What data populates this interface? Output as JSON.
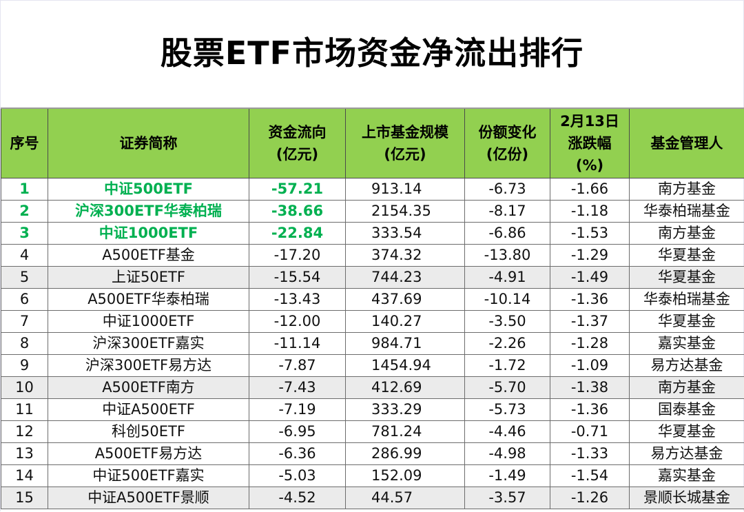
{
  "title": "股票ETF市场资金净流出排行",
  "colors": {
    "header_bg": "#92d050",
    "highlight_text": "#00b050",
    "alt_row_bg": "#ebebeb"
  },
  "columns": [
    {
      "line1": "序号",
      "line2": "",
      "line3": ""
    },
    {
      "line1": "证券简称",
      "line2": "",
      "line3": ""
    },
    {
      "line1": "资金流向",
      "line2": "(亿元)",
      "line3": ""
    },
    {
      "line1": "上市基金规模",
      "line2": "(亿元)",
      "line3": ""
    },
    {
      "line1": "份额变化",
      "line2": "(亿份)",
      "line3": ""
    },
    {
      "line1": "2月13日",
      "line2": "涨跌幅",
      "line3": "(%)"
    },
    {
      "line1": "基金管理人",
      "line2": "",
      "line3": ""
    }
  ],
  "rows": [
    {
      "rank": "1",
      "name": "中证500ETF",
      "flow": "-57.21",
      "size": "913.14",
      "share_change": "-6.73",
      "pct": "-1.66",
      "manager": "南方基金",
      "highlight": true,
      "alt": false
    },
    {
      "rank": "2",
      "name": "沪深300ETF华泰柏瑞",
      "flow": "-38.66",
      "size": "2154.35",
      "share_change": "-8.17",
      "pct": "-1.18",
      "manager": "华泰柏瑞基金",
      "highlight": true,
      "alt": false
    },
    {
      "rank": "3",
      "name": "中证1000ETF",
      "flow": "-22.84",
      "size": "333.54",
      "share_change": "-6.86",
      "pct": "-1.53",
      "manager": "南方基金",
      "highlight": true,
      "alt": false
    },
    {
      "rank": "4",
      "name": "A500ETF基金",
      "flow": "-17.20",
      "size": "374.32",
      "share_change": "-13.80",
      "pct": "-1.29",
      "manager": "华夏基金",
      "highlight": false,
      "alt": false
    },
    {
      "rank": "5",
      "name": "上证50ETF",
      "flow": "-15.54",
      "size": "744.23",
      "share_change": "-4.91",
      "pct": "-1.49",
      "manager": "华夏基金",
      "highlight": false,
      "alt": true
    },
    {
      "rank": "6",
      "name": "A500ETF华泰柏瑞",
      "flow": "-13.43",
      "size": "437.69",
      "share_change": "-10.14",
      "pct": "-1.36",
      "manager": "华泰柏瑞基金",
      "highlight": false,
      "alt": false
    },
    {
      "rank": "7",
      "name": "中证1000ETF",
      "flow": "-12.00",
      "size": "140.27",
      "share_change": "-3.50",
      "pct": "-1.37",
      "manager": "华夏基金",
      "highlight": false,
      "alt": false
    },
    {
      "rank": "8",
      "name": "沪深300ETF嘉实",
      "flow": "-11.14",
      "size": "984.71",
      "share_change": "-2.26",
      "pct": "-1.28",
      "manager": "嘉实基金",
      "highlight": false,
      "alt": false
    },
    {
      "rank": "9",
      "name": "沪深300ETF易方达",
      "flow": "-7.87",
      "size": "1454.94",
      "share_change": "-1.72",
      "pct": "-1.09",
      "manager": "易方达基金",
      "highlight": false,
      "alt": false
    },
    {
      "rank": "10",
      "name": "A500ETF南方",
      "flow": "-7.43",
      "size": "412.69",
      "share_change": "-5.70",
      "pct": "-1.38",
      "manager": "南方基金",
      "highlight": false,
      "alt": true
    },
    {
      "rank": "11",
      "name": "中证A500ETF",
      "flow": "-7.19",
      "size": "333.29",
      "share_change": "-5.73",
      "pct": "-1.36",
      "manager": "国泰基金",
      "highlight": false,
      "alt": false
    },
    {
      "rank": "12",
      "name": "科创50ETF",
      "flow": "-6.95",
      "size": "781.24",
      "share_change": "-4.46",
      "pct": "-0.71",
      "manager": "华夏基金",
      "highlight": false,
      "alt": false
    },
    {
      "rank": "13",
      "name": "A500ETF易方达",
      "flow": "-6.36",
      "size": "286.99",
      "share_change": "-4.98",
      "pct": "-1.33",
      "manager": "易方达基金",
      "highlight": false,
      "alt": false
    },
    {
      "rank": "14",
      "name": "中证500ETF嘉实",
      "flow": "-5.03",
      "size": "152.09",
      "share_change": "-1.49",
      "pct": "-1.54",
      "manager": "嘉实基金",
      "highlight": false,
      "alt": false
    },
    {
      "rank": "15",
      "name": "中证A500ETF景顺",
      "flow": "-4.52",
      "size": "44.57",
      "share_change": "-3.57",
      "pct": "-1.26",
      "manager": "景顺长城基金",
      "highlight": false,
      "alt": true
    }
  ]
}
